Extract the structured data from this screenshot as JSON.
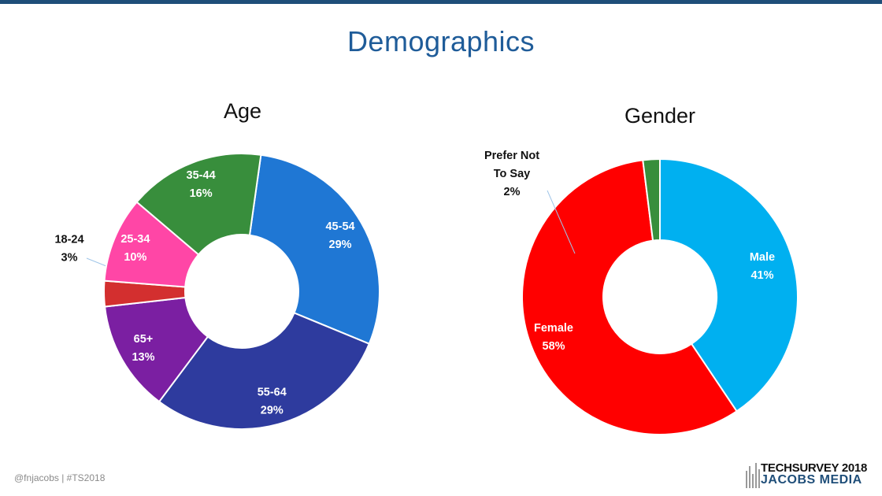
{
  "slide": {
    "title": "Demographics",
    "footer": "@fnjacobs  |  #TS2018",
    "logo": {
      "line1": "TECHSURVEY 2018",
      "line2": "JACOBS MEDIA"
    }
  },
  "chart_data": [
    {
      "type": "pie",
      "title": "Age",
      "donut": true,
      "categories": [
        "45-54",
        "55-64",
        "65+",
        "18-24",
        "25-34",
        "35-44"
      ],
      "values": [
        29,
        29,
        13,
        3,
        10,
        16
      ],
      "labels": [
        "29%",
        "29%",
        "13%",
        "3%",
        "10%",
        "16%"
      ],
      "colors": [
        "#1f77d4",
        "#2e3b9e",
        "#7b1fa2",
        "#d32f2f",
        "#ff46a6",
        "#388e3c"
      ],
      "legend": "none"
    },
    {
      "type": "pie",
      "title": "Gender",
      "donut": true,
      "categories": [
        "Male",
        "Female",
        "Prefer Not To Say"
      ],
      "values": [
        41,
        58,
        2
      ],
      "labels": [
        "41%",
        "58%",
        "2%"
      ],
      "colors": [
        "#00b0f0",
        "#ff0000",
        "#388e3c"
      ],
      "legend": "none"
    }
  ]
}
